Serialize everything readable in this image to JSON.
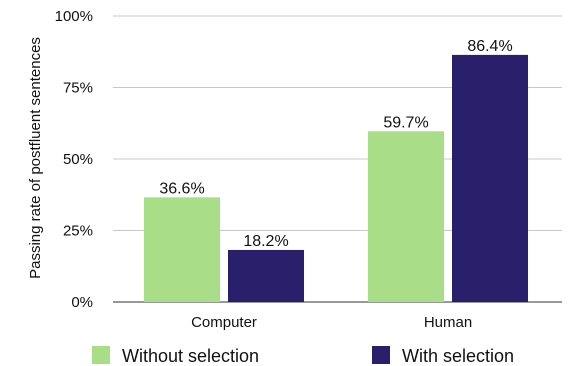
{
  "chart_data": {
    "type": "bar",
    "categories": [
      "Computer",
      "Human"
    ],
    "series": [
      {
        "name": "Without selection",
        "values": [
          36.6,
          59.7
        ],
        "color": "#aadd88",
        "value_labels": [
          "36.6%",
          "59.7%"
        ]
      },
      {
        "name": "With selection",
        "values": [
          18.2,
          86.4
        ],
        "color": "#2a1f6b",
        "value_labels": [
          "18.2%",
          "86.4%"
        ]
      }
    ],
    "title": "",
    "xlabel": "",
    "ylabel": "Passing rate of postfluent sentences",
    "ylim": [
      0,
      100
    ],
    "yticks": [
      0,
      25,
      50,
      75,
      100
    ],
    "ytick_labels": [
      "0%",
      "25%",
      "50%",
      "75%",
      "100%"
    ],
    "grid": true,
    "legend_position": "bottom"
  }
}
